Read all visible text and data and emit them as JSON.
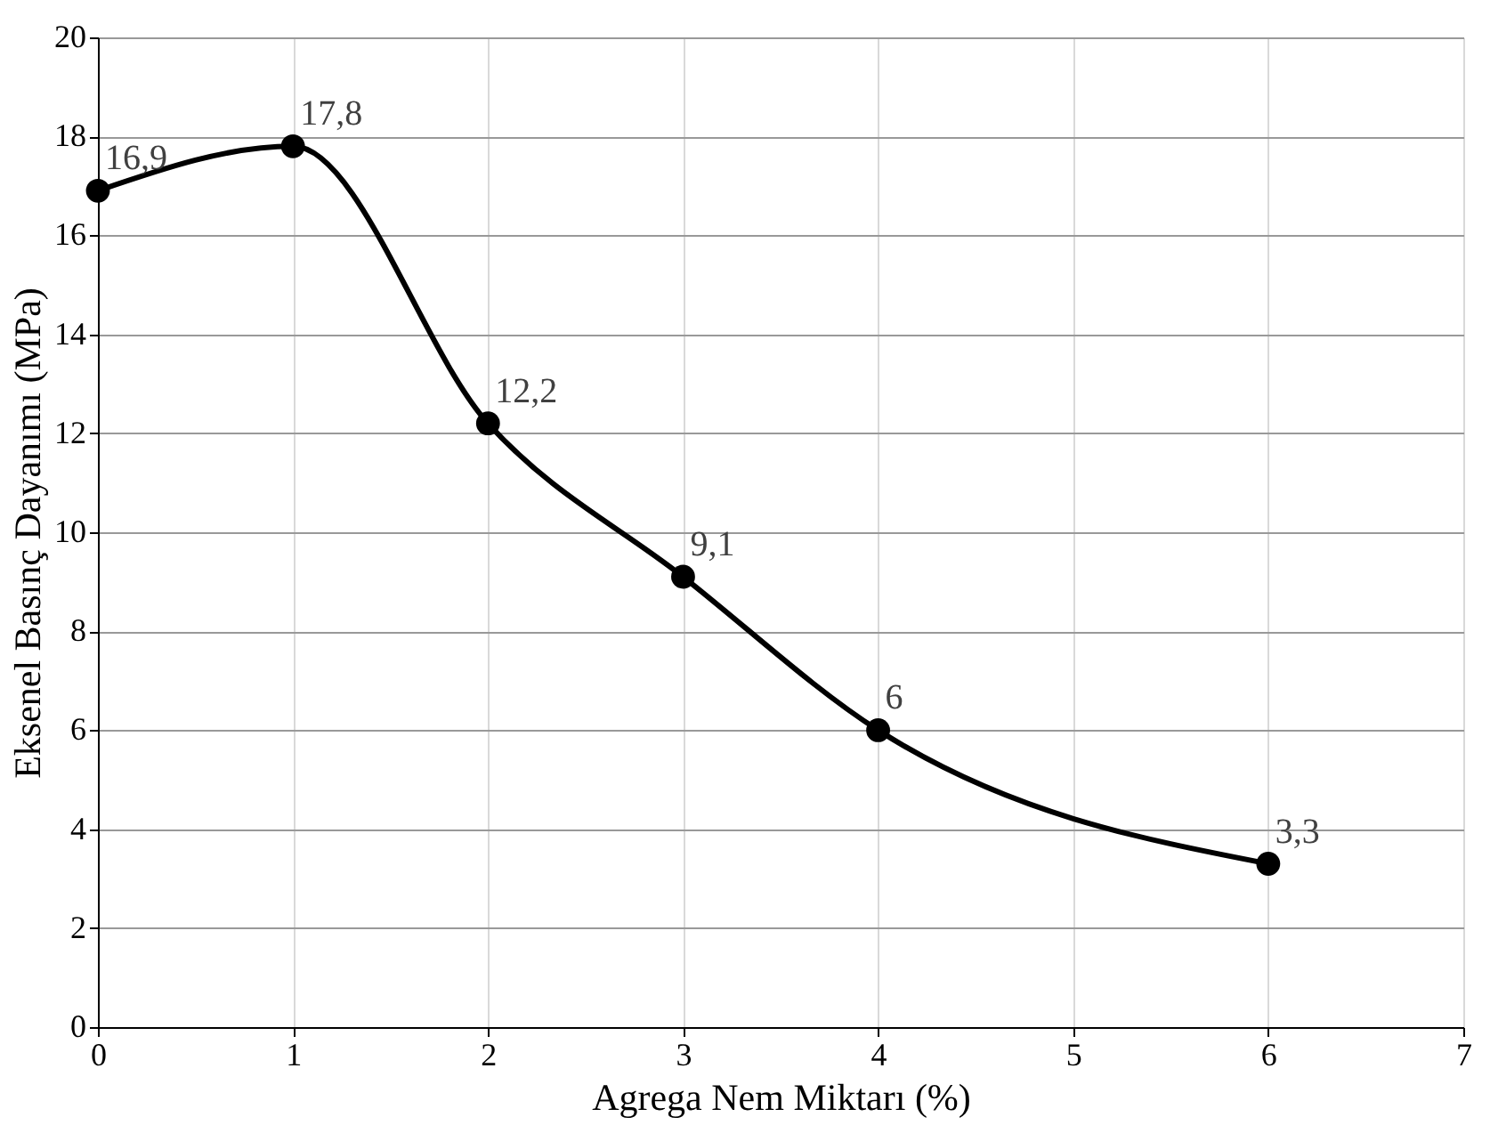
{
  "chart_data": {
    "type": "line",
    "xlabel": "Agrega Nem Miktarı (%)",
    "ylabel": "Eksenel Basınç Dayanımı (MPa)",
    "x": [
      0,
      1,
      2,
      3,
      4,
      6
    ],
    "series": [
      {
        "color": "#000000",
        "values": [
          16.9,
          17.8,
          12.2,
          9.1,
          6,
          3.3
        ],
        "value_labels": [
          "16,9",
          "17,8",
          "12,2",
          "9,1",
          "6",
          "3,3"
        ]
      }
    ],
    "xlim": [
      0,
      7
    ],
    "xticks": [
      0,
      1,
      2,
      3,
      4,
      5,
      6,
      7
    ],
    "ylim": [
      0,
      20
    ],
    "yticks": [
      0,
      2,
      4,
      6,
      8,
      10,
      12,
      14,
      16,
      18,
      20
    ],
    "grid": true,
    "marker": "circle",
    "line_style": "solid"
  }
}
